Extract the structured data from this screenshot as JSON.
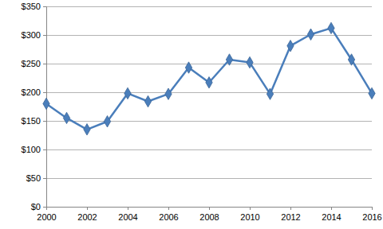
{
  "chart_data": {
    "type": "line",
    "x": [
      2000,
      2001,
      2002,
      2003,
      2004,
      2005,
      2006,
      2007,
      2008,
      2009,
      2010,
      2011,
      2012,
      2013,
      2014,
      2015,
      2016
    ],
    "values": [
      180,
      155,
      135,
      149,
      198,
      184,
      197,
      243,
      217,
      257,
      252,
      197,
      281,
      301,
      312,
      257,
      198
    ],
    "color": "#4a7ebb",
    "marker": "diamond",
    "xlim": [
      2000,
      2016
    ],
    "xticks": [
      2000,
      2002,
      2004,
      2006,
      2008,
      2010,
      2012,
      2014,
      2016
    ],
    "ylim": [
      0,
      350
    ],
    "yticks": [
      {
        "value": 0,
        "label": "$0"
      },
      {
        "value": 50,
        "label": "$50"
      },
      {
        "value": 100,
        "label": "$100"
      },
      {
        "value": 150,
        "label": "$150"
      },
      {
        "value": 200,
        "label": "$200"
      },
      {
        "value": 250,
        "label": "$250"
      },
      {
        "value": 300,
        "label": "$300"
      },
      {
        "value": 350,
        "label": "$350"
      }
    ],
    "grid": true
  }
}
